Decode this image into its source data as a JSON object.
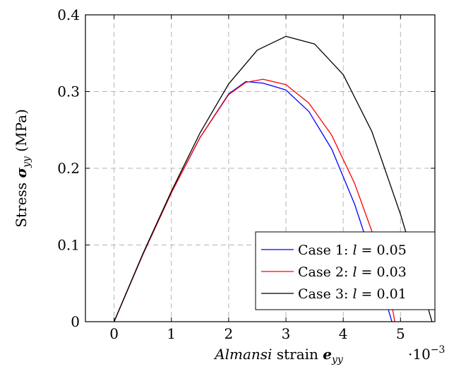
{
  "chart_data": {
    "type": "line",
    "title": "",
    "xlabel": {
      "italic": "Almansi",
      "rest": " strain ",
      "sym": "e",
      "sub": "yy"
    },
    "ylabel": {
      "text": "Stress ",
      "sym": "σ",
      "sub": "yy",
      "unit": " (MPa)"
    },
    "x_multiplier": {
      "base": "·10",
      "exp": "−3"
    },
    "xlim": [
      -0.5,
      5.6
    ],
    "ylim": [
      0,
      0.4
    ],
    "xticks": [
      0,
      1,
      2,
      3,
      4,
      5
    ],
    "yticks": [
      0,
      0.1,
      0.2,
      0.3,
      0.4
    ],
    "xtick_labels": [
      "0",
      "1",
      "2",
      "3",
      "4",
      "5"
    ],
    "ytick_labels": [
      "0",
      "0.1",
      "0.2",
      "0.3",
      "0.4"
    ],
    "grid": true,
    "legend_position": "bottom-right",
    "series": [
      {
        "name": "Case 1: ",
        "param": "l",
        "value": " = 0.05",
        "color": "#0000ff",
        "x": [
          0,
          0.5,
          1.0,
          1.5,
          2.0,
          2.3,
          2.6,
          3.0,
          3.4,
          3.8,
          4.2,
          4.5,
          4.7,
          4.85
        ],
        "y": [
          0,
          0.087,
          0.168,
          0.24,
          0.297,
          0.313,
          0.311,
          0.302,
          0.274,
          0.225,
          0.153,
          0.085,
          0.038,
          0
        ]
      },
      {
        "name": "Case 2: ",
        "param": "l",
        "value": " = 0.03",
        "color": "#ff0000",
        "x": [
          0,
          0.5,
          1.0,
          1.5,
          2.0,
          2.3,
          2.6,
          3.0,
          3.4,
          3.8,
          4.2,
          4.5,
          4.8,
          4.9
        ],
        "y": [
          0,
          0.087,
          0.168,
          0.24,
          0.296,
          0.312,
          0.316,
          0.309,
          0.285,
          0.243,
          0.18,
          0.118,
          0.043,
          0
        ]
      },
      {
        "name": "Case 3: ",
        "param": "l",
        "value": " = 0.01",
        "color": "#000000",
        "x": [
          0,
          0.5,
          1.0,
          1.5,
          2.0,
          2.5,
          3.0,
          3.5,
          4.0,
          4.5,
          5.0,
          5.3,
          5.55
        ],
        "y": [
          0,
          0.088,
          0.17,
          0.246,
          0.31,
          0.354,
          0.372,
          0.362,
          0.322,
          0.248,
          0.14,
          0.065,
          0
        ]
      }
    ]
  }
}
